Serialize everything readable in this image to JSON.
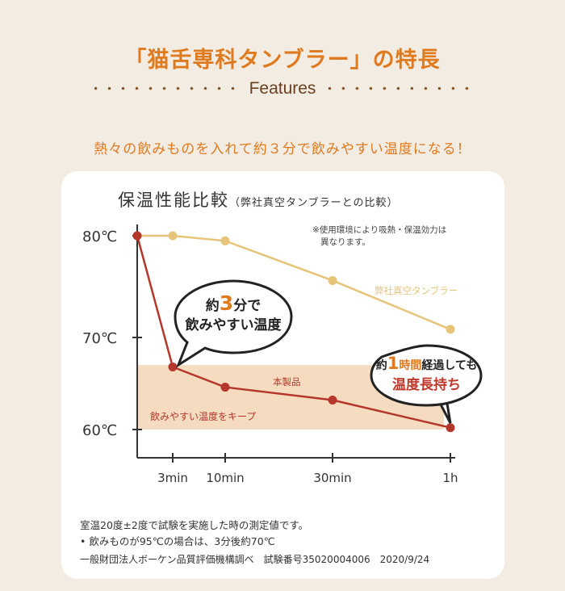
{
  "heading": "「猫舌専科タンブラー」の特長",
  "features": {
    "dots_left": "・・・・・・・・・・・",
    "label": "Features",
    "dots_right": "・・・・・・・・・・・"
  },
  "subheading": "熱々の飲みものを入れて約３分で飲みやすい温度になる！",
  "card": {
    "title": "保温性能比較",
    "title_paren": "（弊社真空タンブラーとの比較）",
    "note_line1": "※使用環境により吸熱・保温効力は",
    "note_line2": "異なります。",
    "bubble1": {
      "pre": "約",
      "num": "3",
      "post": "分で",
      "line2": "飲みやすい温度"
    },
    "bubble2": {
      "pre": "約",
      "num": "1",
      "unit": "時間",
      "post": "経過しても",
      "line2": "温度長持ち"
    },
    "footnote1": "室温20度±2度で試験を実施した時の測定値です。",
    "footnote2": "• 飲みものが95℃の場合は、3分後約70℃",
    "footnote3": "一般財団法人ボーケン品質評価機構調べ　試験番号35020004006　2020/9/24"
  },
  "chart_data": {
    "type": "line",
    "x": [
      "0",
      "3min",
      "10min",
      "30min",
      "1h"
    ],
    "x_ticks": [
      "3min",
      "10min",
      "30min",
      "1h"
    ],
    "y_ticks": [
      "80℃",
      "70℃",
      "60℃"
    ],
    "y_tick_values": [
      80,
      70,
      60
    ],
    "ylim": [
      57.5,
      81
    ],
    "series": [
      {
        "name": "弊社真空タンブラー",
        "color": "#e6c47a",
        "values": [
          80,
          80,
          79.5,
          75.6,
          70.8
        ]
      },
      {
        "name": "本製品",
        "color": "#b5372b",
        "values": [
          80,
          66.8,
          64.6,
          63.2,
          60.2
        ]
      }
    ],
    "band": {
      "label": "飲みやすい温度をキープ",
      "from": 60,
      "to": 67,
      "color": "#f5dcc0"
    }
  }
}
